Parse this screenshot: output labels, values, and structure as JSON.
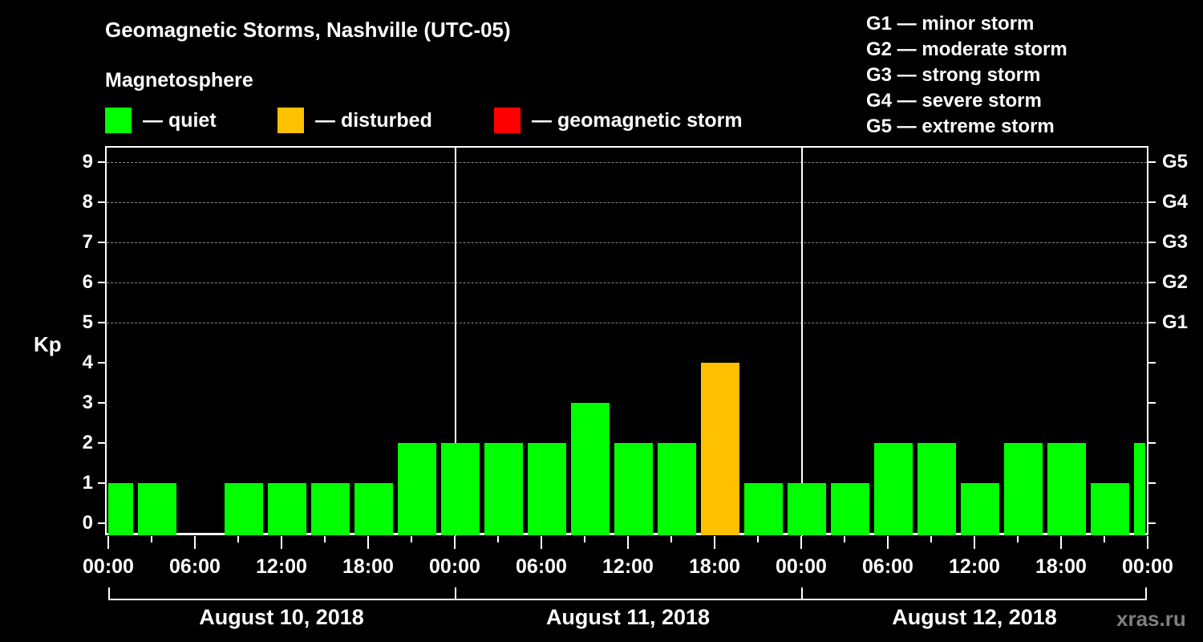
{
  "title": "Geomagnetic Storms, Nashville (UTC-05)",
  "subtitle": "Magnetosphere",
  "legend": [
    {
      "label": "— quiet",
      "color": "#00ff00"
    },
    {
      "label": "— disturbed",
      "color": "#ffc000"
    },
    {
      "label": "— geomagnetic storm",
      "color": "#ff0000"
    }
  ],
  "g_scale": [
    "G1 — minor storm",
    "G2 — moderate storm",
    "G3 — strong storm",
    "G4 — severe storm",
    "G5 — extreme storm"
  ],
  "y_axis_label": "Kp",
  "y_ticks": [
    "0",
    "1",
    "2",
    "3",
    "4",
    "5",
    "6",
    "7",
    "8",
    "9"
  ],
  "right_ticks": [
    "G1",
    "G2",
    "G3",
    "G4",
    "G5"
  ],
  "x_ticks": [
    "00:00",
    "06:00",
    "12:00",
    "18:00",
    "00:00",
    "06:00",
    "12:00",
    "18:00",
    "00:00",
    "06:00",
    "12:00",
    "18:00",
    "00:00"
  ],
  "dates": [
    "August 10, 2018",
    "August 11, 2018",
    "August 12, 2018"
  ],
  "watermark": "xras.ru",
  "chart_data": {
    "type": "bar",
    "title": "Geomagnetic Storms, Nashville (UTC-05)",
    "xlabel": "",
    "ylabel": "Kp",
    "ylim": [
      0,
      9
    ],
    "grid": "dashed horizontal at Kp 5-9",
    "categories": [
      "Aug 10 00:00",
      "Aug 10 02:00",
      "Aug 10 05:00",
      "Aug 10 08:00",
      "Aug 10 11:00",
      "Aug 10 14:00",
      "Aug 10 17:00",
      "Aug 10 20:00",
      "Aug 10 23:00",
      "Aug 11 02:00",
      "Aug 11 05:00",
      "Aug 11 08:00",
      "Aug 11 11:00",
      "Aug 11 14:00",
      "Aug 11 17:00",
      "Aug 11 20:00",
      "Aug 11 23:00",
      "Aug 12 02:00",
      "Aug 12 05:00",
      "Aug 12 08:00",
      "Aug 12 11:00",
      "Aug 12 14:00",
      "Aug 12 17:00",
      "Aug 12 20:00",
      "Aug 12 23:00"
    ],
    "values": [
      1,
      1,
      0,
      1,
      1,
      1,
      1,
      2,
      2,
      2,
      2,
      3,
      2,
      2,
      4,
      1,
      1,
      1,
      2,
      2,
      1,
      2,
      2,
      1,
      2
    ],
    "status": [
      "quiet",
      "quiet",
      "quiet",
      "quiet",
      "quiet",
      "quiet",
      "quiet",
      "quiet",
      "quiet",
      "quiet",
      "quiet",
      "quiet",
      "quiet",
      "quiet",
      "disturbed",
      "quiet",
      "quiet",
      "quiet",
      "quiet",
      "quiet",
      "quiet",
      "quiet",
      "quiet",
      "quiet",
      "quiet"
    ],
    "legend": [
      "quiet",
      "disturbed",
      "geomagnetic storm"
    ],
    "right_axis": {
      "5": "G1",
      "6": "G2",
      "7": "G3",
      "8": "G4",
      "9": "G5"
    }
  }
}
